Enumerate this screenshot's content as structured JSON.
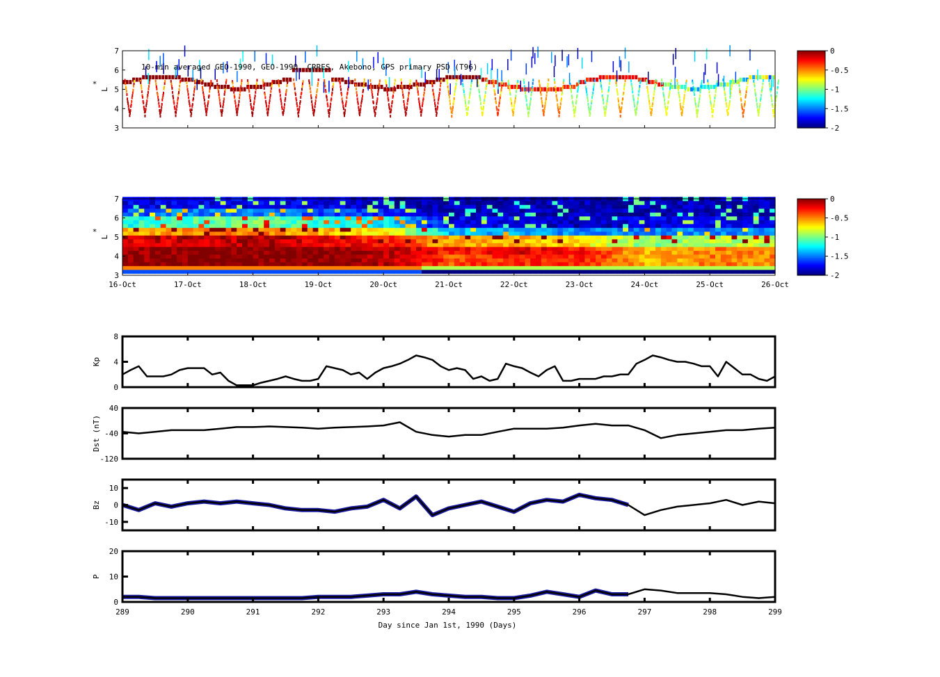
{
  "chart_data": [
    {
      "type": "scatter",
      "panel": "psd-orbit",
      "title": "10-min averaged GEO-1990, GEO-1990, CRRES, Akebono, GPS  primary PSD (T96)",
      "ylabel": "L*",
      "ylim": [
        3,
        7
      ],
      "yticks": [
        "3",
        "4",
        "5",
        "6",
        "7"
      ],
      "xlim": [
        289,
        299
      ],
      "colorbar": {
        "range": [
          -2,
          0
        ],
        "ticks": [
          "0",
          "-0.5",
          "-1",
          "-1.5",
          "-2"
        ],
        "colormap": "jet"
      }
    },
    {
      "type": "heatmap",
      "panel": "psd-reanalysis",
      "ylabel": "L*",
      "ylim": [
        3,
        7
      ],
      "yticks": [
        "3",
        "4",
        "5",
        "6",
        "7"
      ],
      "xlim": [
        289,
        299
      ],
      "xticks": [
        "16-Oct",
        "17-Oct",
        "18-Oct",
        "19-Oct",
        "20-Oct",
        "21-Oct",
        "22-Oct",
        "23-Oct",
        "24-Oct",
        "25-Oct",
        "26-Oct"
      ],
      "L_bins": [
        3.25,
        3.75,
        4.25,
        4.75,
        5.25,
        5.75,
        6.25,
        6.75
      ],
      "days": [
        289,
        290,
        291,
        292,
        293,
        294,
        295,
        296,
        297,
        298
      ],
      "values": [
        [
          -0.6,
          -0.05,
          -0.05,
          -0.2,
          -0.6,
          -1.2,
          -1.6,
          -1.8
        ],
        [
          -0.6,
          0,
          0,
          -0.15,
          -0.5,
          -1.1,
          -1.5,
          -1.8
        ],
        [
          -0.6,
          0,
          0,
          -0.1,
          -0.5,
          -1.0,
          -1.5,
          -1.8
        ],
        [
          -0.7,
          0,
          0,
          -0.2,
          -0.6,
          -1.2,
          -1.6,
          -1.8
        ],
        [
          -0.8,
          -0.1,
          -0.1,
          -0.3,
          -0.7,
          -1.3,
          -1.7,
          -1.9
        ],
        [
          -1.2,
          -0.4,
          -0.3,
          -0.6,
          -1.4,
          -1.8,
          -1.9,
          -1.9
        ],
        [
          -1.0,
          -0.3,
          -0.2,
          -0.6,
          -1.4,
          -1.8,
          -1.9,
          -1.9
        ],
        [
          -1.0,
          -0.3,
          -0.3,
          -0.7,
          -1.5,
          -1.9,
          -1.9,
          -1.9
        ],
        [
          -1.1,
          -0.6,
          -0.6,
          -1.0,
          -1.5,
          -1.8,
          -1.9,
          -1.9
        ],
        [
          -1.1,
          -0.5,
          -0.5,
          -0.9,
          -1.5,
          -1.8,
          -1.9,
          -1.9
        ]
      ],
      "colorbar": {
        "range": [
          -2,
          0
        ],
        "ticks": [
          "0",
          "-0.5",
          "-1",
          "-1.5",
          "-2"
        ],
        "colormap": "jet"
      }
    },
    {
      "type": "line",
      "panel": "kp",
      "ylabel": "Kp",
      "ylim": [
        0,
        8
      ],
      "yticks": [
        "0",
        "4",
        "8"
      ],
      "x_start": 289,
      "x_step": 0.125,
      "values": [
        2,
        2.7,
        3.3,
        1.7,
        1.7,
        1.7,
        2,
        2.7,
        3,
        3,
        3,
        2,
        2.3,
        1,
        0.3,
        0.3,
        0.3,
        0.7,
        1,
        1.3,
        1.7,
        1.3,
        1,
        1,
        1.3,
        3.3,
        3,
        2.7,
        2,
        2.3,
        1.3,
        2.3,
        3,
        3.3,
        3.7,
        4.3,
        5,
        4.7,
        4.3,
        3.3,
        2.7,
        3,
        2.7,
        1.3,
        1.7,
        1,
        1.3,
        3.7,
        3.3,
        3,
        2.3,
        1.7,
        2.7,
        3.3,
        1,
        1,
        1.3,
        1.3,
        1.3,
        1.7,
        1.7,
        2,
        2,
        3.7,
        4.3,
        5,
        4.7,
        4.3,
        4,
        4,
        3.7,
        3.3,
        3.3,
        1.7,
        4,
        3,
        2,
        2,
        1.3,
        1,
        1.7
      ]
    },
    {
      "type": "line",
      "panel": "dst",
      "ylabel": "Dst (nT)",
      "ylim": [
        -120,
        40
      ],
      "yticks": [
        "-120",
        "-40",
        "40"
      ],
      "x_start": 289,
      "x_step": 0.25,
      "values": [
        -35,
        -40,
        -35,
        -30,
        -30,
        -30,
        -25,
        -20,
        -20,
        -18,
        -20,
        -22,
        -25,
        -22,
        -20,
        -18,
        -15,
        -5,
        -35,
        -45,
        -50,
        -45,
        -45,
        -35,
        -25,
        -25,
        -25,
        -22,
        -15,
        -10,
        -15,
        -15,
        -30,
        -55,
        -45,
        -40,
        -35,
        -30,
        -30,
        -25,
        -22
      ]
    },
    {
      "type": "line",
      "panel": "bz",
      "ylabel": "Bz",
      "ylim": [
        -15,
        15
      ],
      "yticks": [
        "-10",
        "0",
        "10"
      ],
      "x_start": 289,
      "x_step": 0.25,
      "highlight_until": 296.8,
      "highlight_color": "#1a1aa0",
      "values": [
        0,
        -3,
        1,
        -1,
        1,
        2,
        1,
        2,
        1,
        0,
        -2,
        -3,
        -3,
        -4,
        -2,
        -1,
        3,
        -2,
        5,
        -6,
        -2,
        0,
        2,
        -1,
        -4,
        1,
        3,
        2,
        6,
        4,
        3,
        0,
        -6,
        -3,
        -1,
        0,
        1,
        3,
        0,
        2,
        1
      ]
    },
    {
      "type": "line",
      "panel": "p",
      "ylabel": "P",
      "ylim": [
        0,
        20
      ],
      "yticks": [
        "0",
        "10",
        "20"
      ],
      "x_start": 289,
      "x_step": 0.25,
      "highlight_until": 296.8,
      "highlight_color": "#1a1aa0",
      "xlabel": "Day since Jan 1st, 1990 (Days)",
      "xticks": [
        "289",
        "290",
        "291",
        "292",
        "293",
        "294",
        "295",
        "296",
        "297",
        "298",
        "299"
      ],
      "values": [
        2,
        2,
        1.5,
        1.5,
        1.5,
        1.5,
        1.5,
        1.5,
        1.5,
        1.5,
        1.5,
        1.5,
        2,
        2,
        2,
        2.5,
        3,
        3,
        4,
        3,
        2.5,
        2,
        2,
        1.5,
        1.5,
        2.5,
        4,
        3,
        2,
        4.5,
        3,
        3,
        5,
        4.5,
        3.5,
        3.5,
        3.5,
        3,
        2,
        1.5,
        2
      ]
    }
  ]
}
